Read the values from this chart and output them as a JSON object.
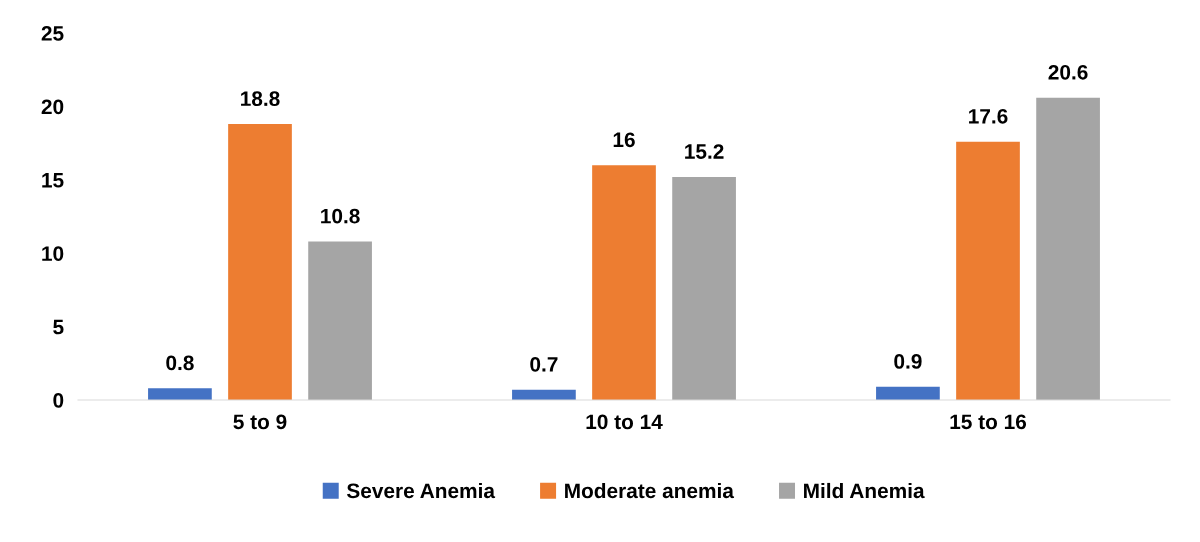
{
  "chart_data": {
    "type": "bar",
    "categories": [
      "5 to 9",
      "10 to 14",
      "15 to 16"
    ],
    "series": [
      {
        "name": "Severe Anemia",
        "color": "#4472c4",
        "values": [
          0.8,
          0.7,
          0.9
        ]
      },
      {
        "name": "Moderate anemia",
        "color": "#ed7d31",
        "values": [
          18.8,
          16,
          17.6
        ]
      },
      {
        "name": "Mild Anemia",
        "color": "#a5a5a5",
        "values": [
          10.8,
          15.2,
          20.6
        ]
      }
    ],
    "ylim": [
      0,
      25
    ],
    "yticks": [
      0,
      5,
      10,
      15,
      20,
      25
    ],
    "data_labels": true,
    "grid": false,
    "legend": "bottom"
  }
}
